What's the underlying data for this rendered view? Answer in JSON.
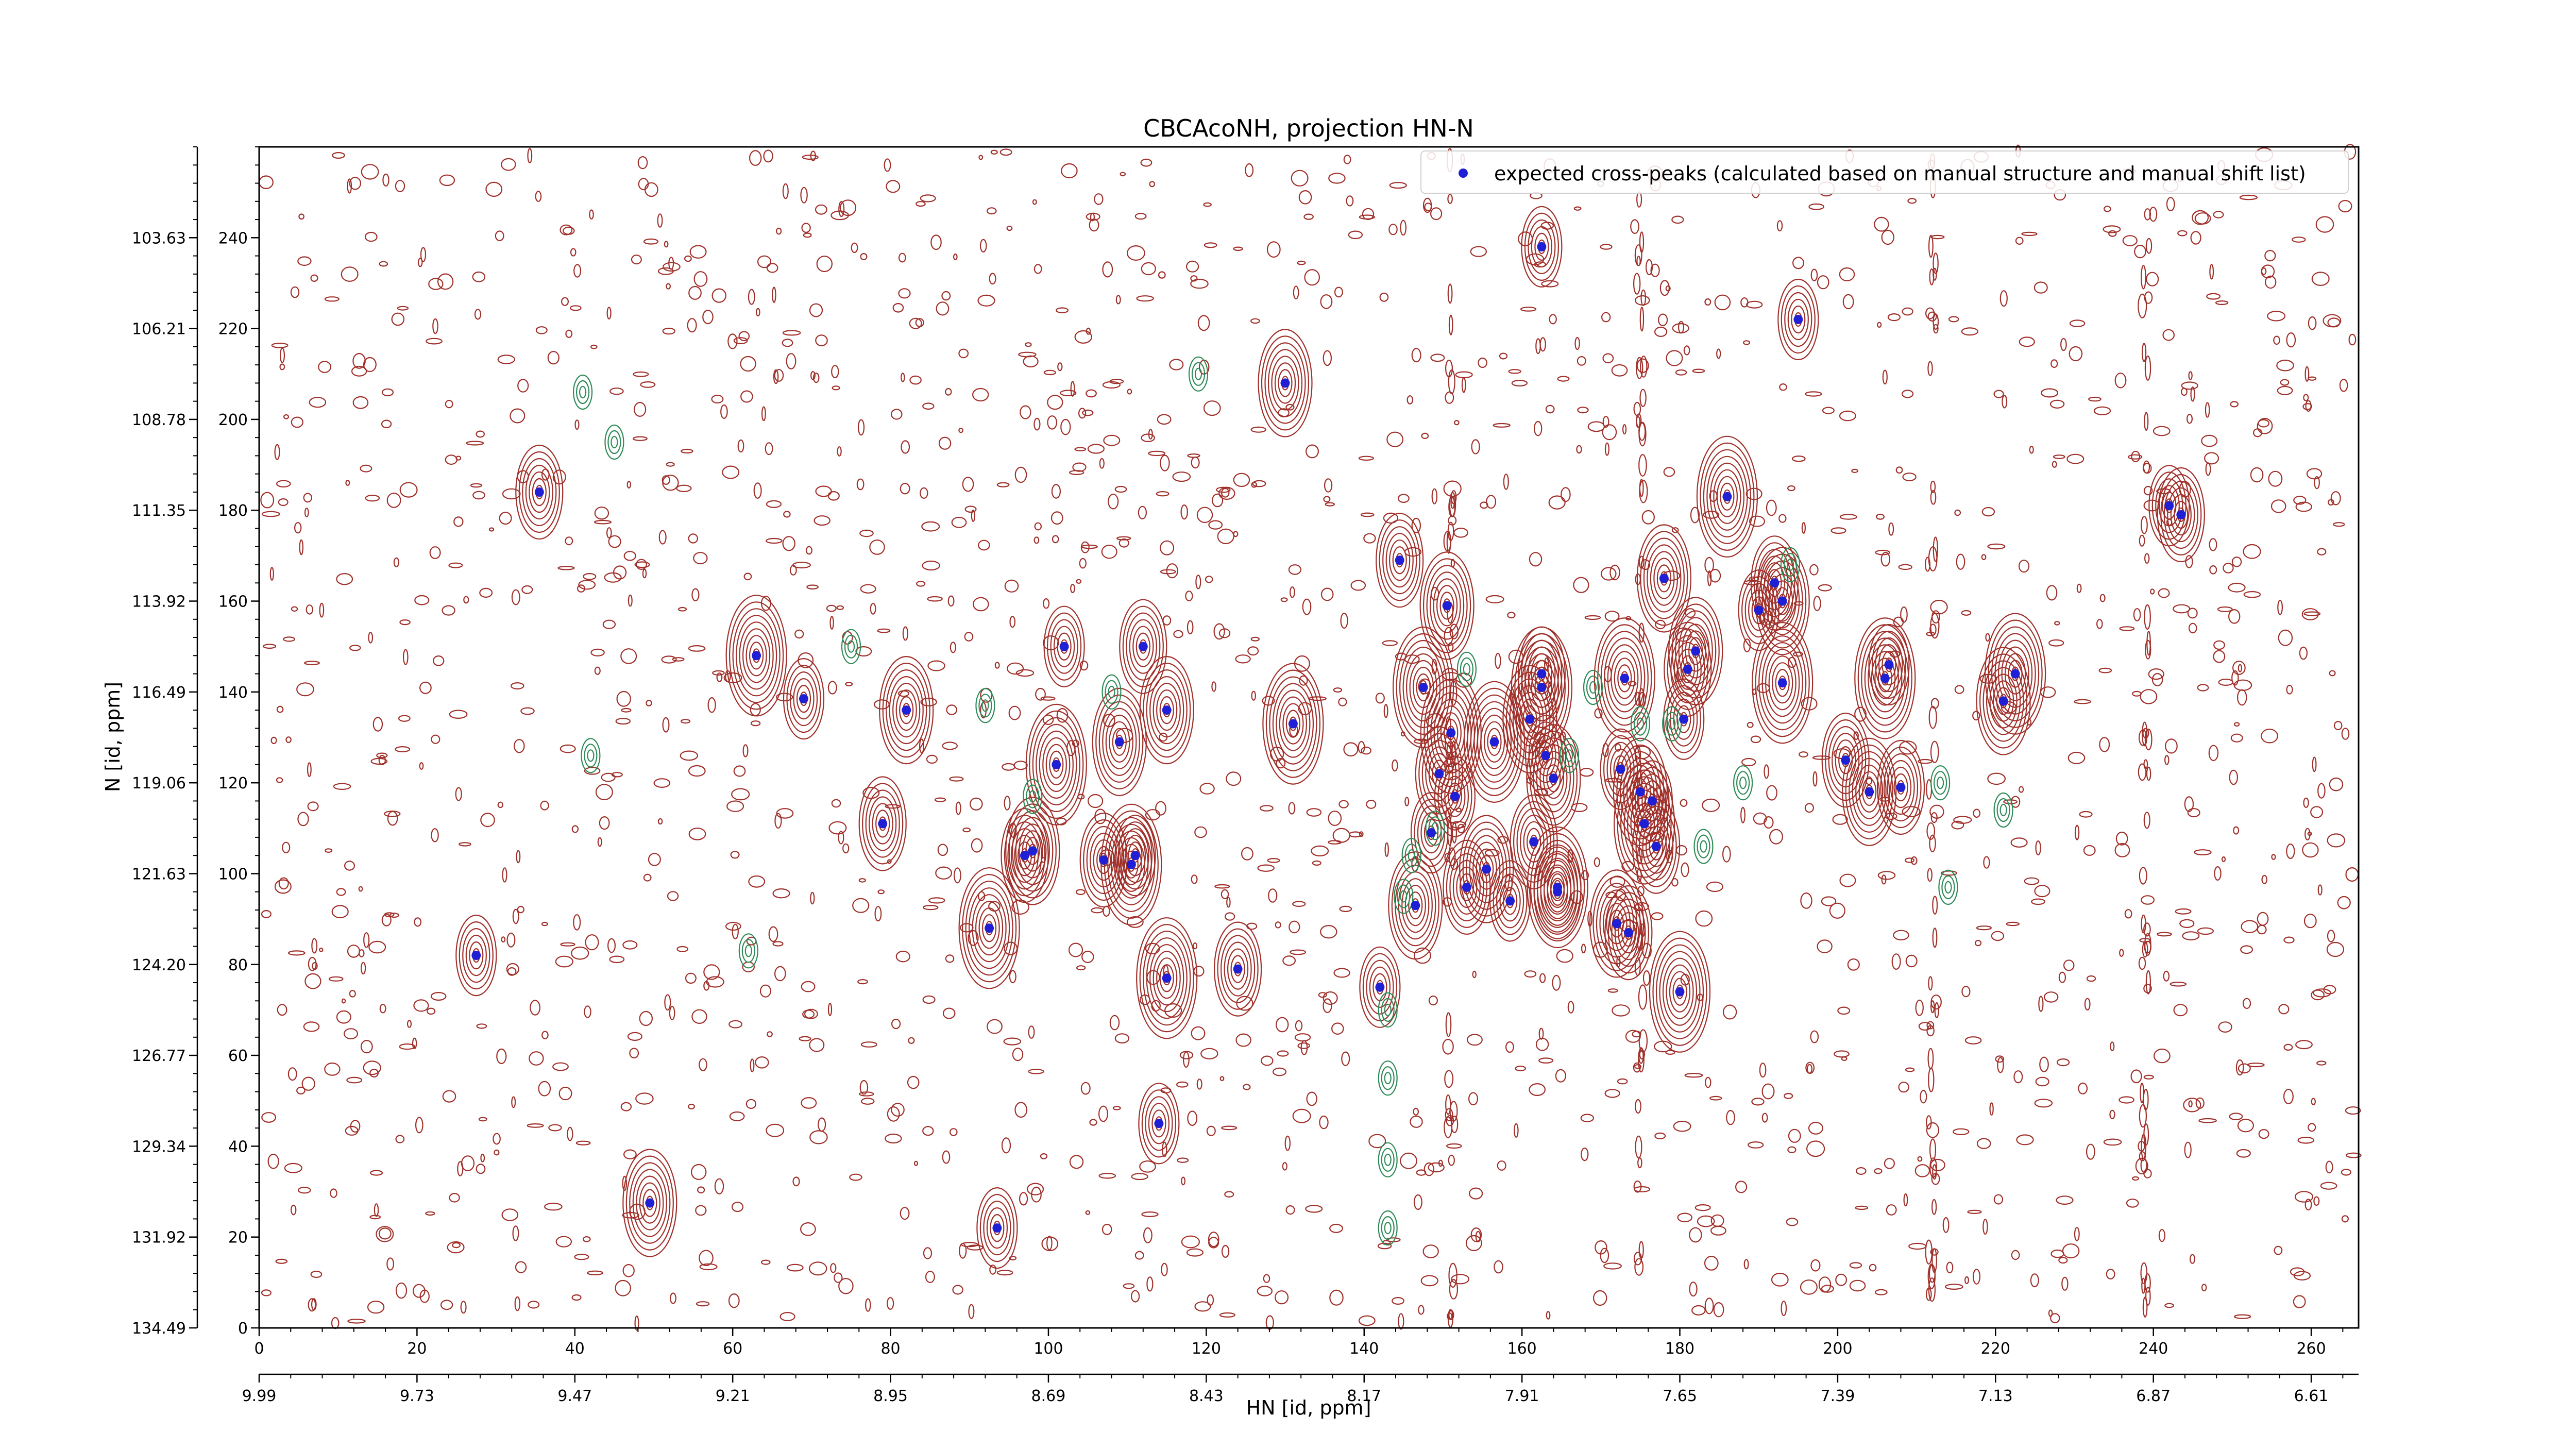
{
  "chart_data": {
    "type": "scatter",
    "title": "CBCAcoNH, projection HN-N",
    "xlabel": "HN [id, ppm]",
    "ylabel": "N [id, ppm]",
    "xlim": [
      0,
      266
    ],
    "ylim": [
      0,
      260
    ],
    "x_ticks": [
      0,
      20,
      40,
      60,
      80,
      100,
      120,
      140,
      160,
      180,
      200,
      220,
      240,
      260
    ],
    "y_ticks": [
      0,
      20,
      40,
      60,
      80,
      100,
      120,
      140,
      160,
      180,
      200,
      220,
      240
    ],
    "x_ppm_ticks": [
      "9.99",
      "9.73",
      "9.47",
      "9.21",
      "8.95",
      "8.69",
      "8.43",
      "8.17",
      "7.91",
      "7.65",
      "7.39",
      "7.13",
      "6.87",
      "6.61"
    ],
    "y_ppm_ticks": [
      "134.49",
      "131.92",
      "129.34",
      "126.77",
      "124.20",
      "121.63",
      "119.06",
      "116.49",
      "113.92",
      "111.35",
      "108.78",
      "106.21",
      "103.63"
    ],
    "grid": false,
    "legend_position": "top-right",
    "colors": {
      "peak": "#1f1fd6",
      "contour_positive": "#a0302a",
      "contour_negative": "#2e8b57"
    },
    "series": [
      {
        "name": "expected cross-peaks (calculated based on manual structure and manual shift list)",
        "x": [
          27.5,
          35.5,
          49.5,
          63,
          69,
          79,
          82,
          92.5,
          93.5,
          97,
          98,
          101,
          102,
          107,
          109,
          110.5,
          111,
          112,
          115,
          115,
          114,
          124,
          130,
          131,
          142,
          144.5,
          146.5,
          147.5,
          148.5,
          149.5,
          150.5,
          151,
          151.5,
          153,
          155.5,
          156.5,
          158.5,
          161.5,
          161,
          162.5,
          162.5,
          162.5,
          164,
          164.5,
          163,
          164.5,
          172,
          173,
          172.5,
          173.5,
          175,
          175.5,
          176.5,
          177,
          178,
          180,
          180.5,
          181,
          182,
          186,
          190,
          192,
          193,
          193,
          195,
          201,
          204,
          206,
          206.5,
          208,
          221,
          222.5,
          242,
          243.5
        ],
        "y": [
          82,
          184,
          27.5,
          148,
          138.5,
          111,
          136,
          88,
          22,
          104,
          105,
          124,
          150,
          103,
          129,
          102,
          104,
          150,
          136,
          77,
          45,
          79,
          208,
          133,
          75,
          169,
          93,
          141,
          109,
          122,
          159,
          131,
          117,
          97,
          101,
          129,
          94,
          107,
          134,
          141,
          238,
          144,
          121,
          97,
          126,
          96,
          89,
          143,
          123,
          87,
          118,
          111,
          116,
          106,
          165,
          74,
          134,
          145,
          149,
          183,
          158,
          164,
          160,
          142,
          222,
          125,
          118,
          143,
          146,
          119,
          138,
          144,
          181,
          179
        ]
      }
    ]
  }
}
